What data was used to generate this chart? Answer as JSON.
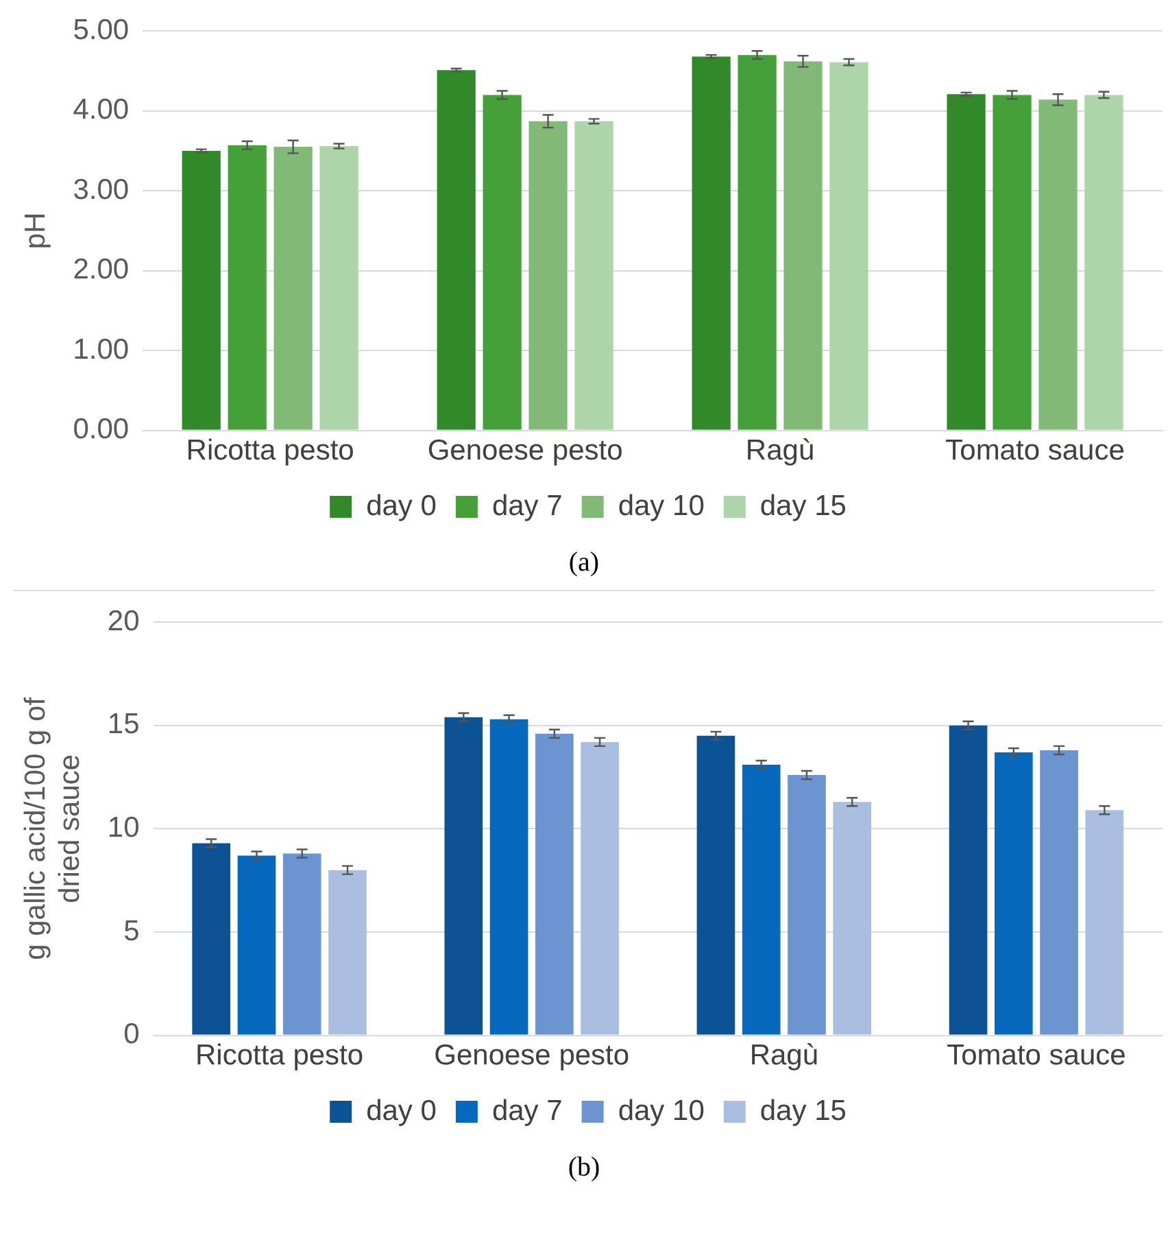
{
  "chart_data": [
    {
      "type": "bar",
      "ylabel": "pH",
      "categories": [
        "Ricotta pesto",
        "Genoese pesto",
        "Ragù",
        "Tomato sauce"
      ],
      "series": [
        {
          "name": "day 0",
          "color": "#31892a",
          "values": [
            3.5,
            4.51,
            4.68,
            4.21
          ],
          "errors": [
            0.02,
            0.02,
            0.02,
            0.02
          ]
        },
        {
          "name": "day 7",
          "color": "#45a039",
          "values": [
            3.57,
            4.2,
            4.7,
            4.2
          ],
          "errors": [
            0.05,
            0.05,
            0.05,
            0.05
          ]
        },
        {
          "name": "day 10",
          "color": "#80ba76",
          "values": [
            3.55,
            3.87,
            4.62,
            4.14
          ],
          "errors": [
            0.08,
            0.08,
            0.07,
            0.07
          ]
        },
        {
          "name": "day 15",
          "color": "#aed4a9",
          "values": [
            3.56,
            3.87,
            4.61,
            4.2
          ],
          "errors": [
            0.03,
            0.03,
            0.04,
            0.04
          ]
        }
      ],
      "ylim": [
        0,
        5
      ],
      "yticks": [
        {
          "value": 0,
          "label": "0.00"
        },
        {
          "value": 1,
          "label": "1.00"
        },
        {
          "value": 2,
          "label": "2.00"
        },
        {
          "value": 3,
          "label": "3.00"
        },
        {
          "value": 4,
          "label": "4.00"
        },
        {
          "value": 5,
          "label": "5.00"
        }
      ],
      "grid": "y",
      "legend": "bottom",
      "annotations": [
        "(a)"
      ]
    },
    {
      "type": "bar",
      "ylabel": "g gallic acid/100 g of dried sauce",
      "categories": [
        "Ricotta pesto",
        "Genoese pesto",
        "Ragù",
        "Tomato sauce"
      ],
      "series": [
        {
          "name": "day 0",
          "color": "#0c5396",
          "values": [
            9.3,
            15.4,
            14.5,
            15.0
          ],
          "errors": [
            0.2,
            0.2,
            0.2,
            0.2
          ]
        },
        {
          "name": "day 7",
          "color": "#0669bd",
          "values": [
            8.7,
            15.3,
            13.1,
            13.7
          ],
          "errors": [
            0.2,
            0.2,
            0.2,
            0.2
          ]
        },
        {
          "name": "day 10",
          "color": "#6c94d0",
          "values": [
            8.8,
            14.6,
            12.6,
            13.8
          ],
          "errors": [
            0.2,
            0.2,
            0.2,
            0.2
          ]
        },
        {
          "name": "day 15",
          "color": "#a9bee1",
          "values": [
            8.0,
            14.2,
            11.3,
            10.9
          ],
          "errors": [
            0.2,
            0.2,
            0.2,
            0.2
          ]
        }
      ],
      "ylim": [
        0,
        20
      ],
      "yticks": [
        0,
        5,
        10,
        15,
        20
      ],
      "grid": "y",
      "legend": "bottom",
      "annotations": [
        "(b)"
      ]
    }
  ]
}
